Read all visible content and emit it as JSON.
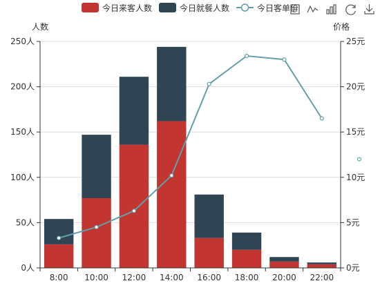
{
  "chart_data": {
    "type": "bar",
    "categories": [
      "8:00",
      "10:00",
      "12:00",
      "14:00",
      "16:00",
      "18:00",
      "20:00",
      "22:00"
    ],
    "series": [
      {
        "name": "今日来客人数",
        "type": "bar",
        "stack": "total",
        "color": "#c23531",
        "values": [
          26,
          77,
          136,
          162,
          33,
          20,
          7,
          4
        ]
      },
      {
        "name": "今日就餐人数",
        "type": "bar",
        "stack": "total",
        "color": "#2f4554",
        "values": [
          28,
          70,
          75,
          82,
          48,
          19,
          5,
          2
        ]
      },
      {
        "name": "今日客单价",
        "type": "line",
        "axis": "right",
        "color": "#61a0a8",
        "values": [
          3.3,
          4.5,
          6.3,
          10.2,
          20.3,
          23.4,
          23.0,
          16.5
        ]
      }
    ],
    "yaxis_left": {
      "label": "人数",
      "min": 0,
      "max": 250,
      "ticks": [
        "0人",
        "50人",
        "100人",
        "150人",
        "200人",
        "250人"
      ],
      "tick_values": [
        0,
        50,
        100,
        150,
        200,
        250
      ]
    },
    "yaxis_right": {
      "label": "价格",
      "min": 0,
      "max": 25,
      "ticks": [
        "0元",
        "5元",
        "10元",
        "15元",
        "20元",
        "25元"
      ],
      "tick_values": [
        0,
        5,
        10,
        15,
        20,
        25
      ]
    },
    "stray_point": {
      "value": 12,
      "color": "#61a0a8"
    },
    "grid": true,
    "legend_position": "top-center"
  },
  "toolbox": [
    "data-view-icon",
    "line-chart-icon",
    "bar-chart-icon",
    "restore-icon",
    "save-image-icon"
  ]
}
